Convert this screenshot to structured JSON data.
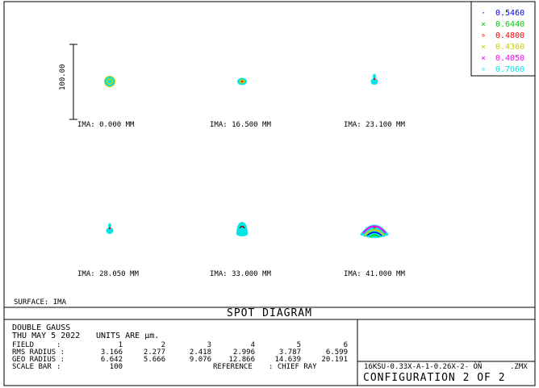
{
  "chart_data": {
    "type": "scatter",
    "title": "SPOT DIAGRAM",
    "surface": "SURFACE: IMA",
    "scale_bar_label": "100.00",
    "legend": [
      {
        "symbol": "·",
        "label": "0.5460",
        "color": "#0000ff"
      },
      {
        "symbol": "×",
        "label": "0.6440",
        "color": "#00cc00"
      },
      {
        "symbol": "∘",
        "label": "0.4800",
        "color": "#ff0000"
      },
      {
        "symbol": "×",
        "label": "0.4360",
        "color": "#cccc00"
      },
      {
        "symbol": "×",
        "label": "0.4050",
        "color": "#ff00ff"
      },
      {
        "symbol": "∘",
        "label": "0.7060",
        "color": "#00e5e5"
      }
    ],
    "fields": [
      {
        "label": "IMA: 0.000 MM",
        "shape": "ring"
      },
      {
        "label": "IMA: 16.500 MM",
        "shape": "oval"
      },
      {
        "label": "IMA: 23.100 MM",
        "shape": "drop"
      },
      {
        "label": "IMA: 28.050 MM",
        "shape": "drop"
      },
      {
        "label": "IMA: 33.000 MM",
        "shape": "dome"
      },
      {
        "label": "IMA: 41.000 MM",
        "shape": "fan"
      }
    ],
    "info": {
      "lens_name": "DOUBLE GAUSS",
      "date": "THU MAY 5 2022",
      "units": "UNITS ARE µm.",
      "field_label": "FIELD",
      "field_values": [
        "1",
        "2",
        "3",
        "4",
        "5",
        "6"
      ],
      "rms_label": "RMS RADIUS :",
      "rms_values": [
        "3.166",
        "2.277",
        "2.418",
        "2.996",
        "3.787",
        "6.599"
      ],
      "geo_label": "GEO RADIUS :",
      "geo_values": [
        "6.642",
        "5.666",
        "9.076",
        "12.866",
        "14.639",
        "20.191"
      ],
      "scale_label": "SCALE BAR",
      "scale_value": "100",
      "reference": "REFERENCE",
      "reference_value": ": CHIEF RAY",
      "filename": "16KSU-0.33X-A-1-0.26X-2- ÒÑ",
      "file_ext": ".ZMX",
      "configuration": "CONFIGURATION 2 OF 2"
    }
  }
}
